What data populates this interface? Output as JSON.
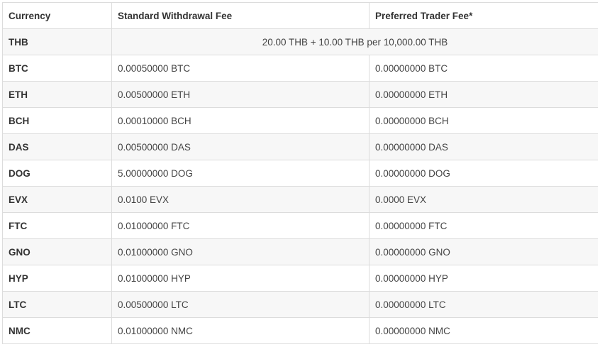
{
  "table": {
    "headers": [
      "Currency",
      "Standard Withdrawal Fee",
      "Preferred Trader Fee*"
    ],
    "thb_row": {
      "currency": "THB",
      "fee": "20.00 THB + 10.00 THB per 10,000.00 THB"
    },
    "rows": [
      {
        "currency": "BTC",
        "standard": "0.00050000 BTC",
        "preferred": "0.00000000 BTC"
      },
      {
        "currency": "ETH",
        "standard": "0.00500000 ETH",
        "preferred": "0.00000000 ETH"
      },
      {
        "currency": "BCH",
        "standard": "0.00010000 BCH",
        "preferred": "0.00000000 BCH"
      },
      {
        "currency": "DAS",
        "standard": "0.00500000 DAS",
        "preferred": "0.00000000 DAS"
      },
      {
        "currency": "DOG",
        "standard": "5.00000000 DOG",
        "preferred": "0.00000000 DOG"
      },
      {
        "currency": "EVX",
        "standard": "0.0100 EVX",
        "preferred": "0.0000 EVX"
      },
      {
        "currency": "FTC",
        "standard": "0.01000000 FTC",
        "preferred": "0.00000000 FTC"
      },
      {
        "currency": "GNO",
        "standard": "0.01000000 GNO",
        "preferred": "0.00000000 GNO"
      },
      {
        "currency": "HYP",
        "standard": "0.01000000 HYP",
        "preferred": "0.00000000 HYP"
      },
      {
        "currency": "LTC",
        "standard": "0.00500000 LTC",
        "preferred": "0.00000000 LTC"
      },
      {
        "currency": "NMC",
        "standard": "0.01000000 NMC",
        "preferred": "0.00000000 NMC"
      }
    ]
  }
}
